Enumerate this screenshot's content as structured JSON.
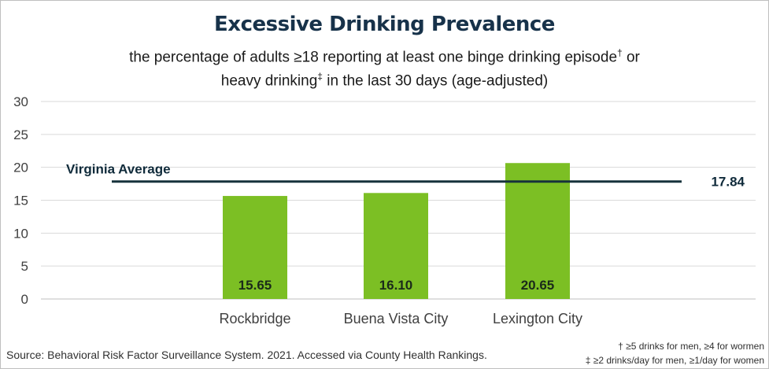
{
  "header": {
    "title": "Excessive Drinking Prevalence",
    "subtitle_line1": "the percentage of adults ≥18 reporting at least one binge drinking episode",
    "subtitle_mark1": "†",
    "subtitle_line1_end": " or",
    "subtitle_line2_start": "heavy drinking",
    "subtitle_mark2": "‡",
    "subtitle_line2_end": " in the last 30 days (age-adjusted)"
  },
  "footer": {
    "source": "Source:  Behavioral Risk Factor Surveillance System. 2021. Accessed via County Health Rankings.",
    "footnote1": "† ≥5 drinks for men, ≥4 for wormen",
    "footnote2": "‡ ≥2 drinks/day for men, ≥1/day for women"
  },
  "chart_data": {
    "type": "bar",
    "categories": [
      "Rockbridge",
      "Buena Vista City",
      "Lexington City"
    ],
    "values": [
      15.65,
      16.1,
      20.65
    ],
    "value_labels": [
      "15.65",
      "16.10",
      "20.65"
    ],
    "ylim": [
      0,
      30
    ],
    "yticks": [
      0,
      5,
      10,
      15,
      20,
      25,
      30
    ],
    "ytick_labels": [
      "0",
      "5",
      "10",
      "15",
      "20",
      "25",
      "30"
    ],
    "grid": true,
    "bar_color": "#7cbf24",
    "reference_line": {
      "label": "Virginia Average",
      "value": 17.84,
      "value_label": "17.84",
      "color": "#17323c"
    }
  }
}
